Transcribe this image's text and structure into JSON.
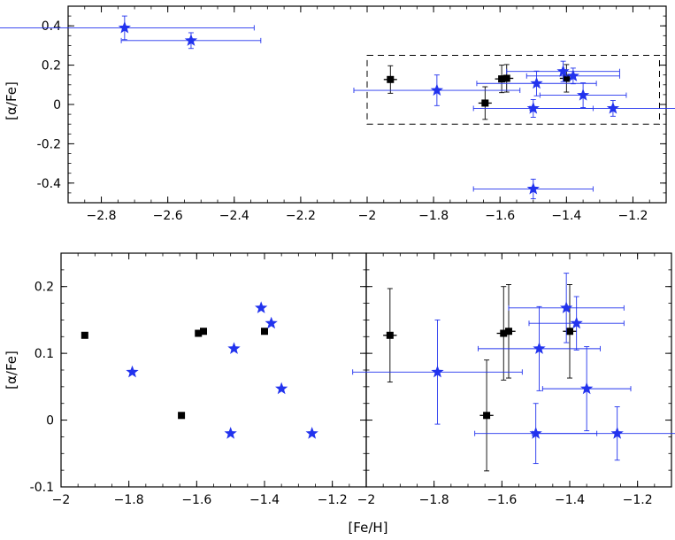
{
  "chart_data": [
    {
      "type": "scatter",
      "panel": "top",
      "xlabel": "",
      "ylabel": "[α/Fe]",
      "xlim": [
        -2.9,
        -1.1
      ],
      "ylim": [
        -0.5,
        0.5
      ],
      "xticks": [
        -2.8,
        -2.6,
        -2.4,
        -2.2,
        -2.0,
        -1.8,
        -1.6,
        -1.4,
        -1.2
      ],
      "xtick_labels": [
        "−2.8",
        "−2.6",
        "−2.4",
        "−2.2",
        "−2",
        "−1.8",
        "−1.6",
        "−1.4",
        "−1.2"
      ],
      "yticks": [
        -0.4,
        -0.2,
        0.0,
        0.2,
        0.4
      ],
      "ytick_labels": [
        "-0.4",
        "-0.2",
        "0",
        "0.2",
        "0.4"
      ],
      "highlight_box": {
        "x": [
          -2.0,
          -1.12
        ],
        "y": [
          -0.1,
          0.25
        ]
      },
      "series": [
        {
          "name": "squares",
          "marker": "square",
          "color": "#000000",
          "points": [
            {
              "x": -1.93,
              "y": 0.127,
              "xerr": 0.02,
              "yerr": 0.07
            },
            {
              "x": -1.645,
              "y": 0.007,
              "xerr": 0.02,
              "yerr": 0.083
            },
            {
              "x": -1.595,
              "y": 0.13,
              "xerr": 0.02,
              "yerr": 0.07
            },
            {
              "x": -1.58,
              "y": 0.133,
              "xerr": 0.02,
              "yerr": 0.07
            },
            {
              "x": -1.4,
              "y": 0.133,
              "xerr": 0.02,
              "yerr": 0.07
            }
          ]
        },
        {
          "name": "stars",
          "marker": "star",
          "color": "#2233ee",
          "points": [
            {
              "x": -2.73,
              "y": 0.39,
              "xerr": 0.39,
              "yerr": 0.06
            },
            {
              "x": -2.53,
              "y": 0.325,
              "xerr": 0.21,
              "yerr": 0.04
            },
            {
              "x": -1.79,
              "y": 0.072,
              "xerr": 0.25,
              "yerr": 0.078
            },
            {
              "x": -1.49,
              "y": 0.107,
              "xerr": 0.18,
              "yerr": 0.063
            },
            {
              "x": -1.41,
              "y": 0.168,
              "xerr": 0.17,
              "yerr": 0.052
            },
            {
              "x": -1.38,
              "y": 0.145,
              "xerr": 0.14,
              "yerr": 0.04
            },
            {
              "x": -1.35,
              "y": 0.047,
              "xerr": 0.13,
              "yerr": 0.063
            },
            {
              "x": -1.5,
              "y": -0.02,
              "xerr": 0.18,
              "yerr": 0.045
            },
            {
              "x": -1.26,
              "y": -0.02,
              "xerr": 0.25,
              "yerr": 0.04
            },
            {
              "x": -1.5,
              "y": -0.43,
              "xerr": 0.18,
              "yerr": 0.05
            }
          ]
        }
      ]
    },
    {
      "type": "scatter",
      "panel": "bottom-left",
      "xlabel": "",
      "ylabel": "[α/Fe]",
      "xlim": [
        -2.0,
        -1.1
      ],
      "ylim": [
        -0.1,
        0.25
      ],
      "xticks": [
        -2.0,
        -1.8,
        -1.6,
        -1.4,
        -1.2
      ],
      "xtick_labels": [
        "−2",
        "−1.8",
        "−1.6",
        "−1.4",
        "−1.2"
      ],
      "yticks": [
        -0.1,
        0.0,
        0.1,
        0.2
      ],
      "ytick_labels": [
        "-0.1",
        "0",
        "0.1",
        "0.2"
      ],
      "series": [
        {
          "name": "squares",
          "marker": "square",
          "color": "#000000",
          "points": [
            {
              "x": -1.93,
              "y": 0.127
            },
            {
              "x": -1.645,
              "y": 0.007
            },
            {
              "x": -1.595,
              "y": 0.13
            },
            {
              "x": -1.58,
              "y": 0.133
            },
            {
              "x": -1.4,
              "y": 0.133
            }
          ]
        },
        {
          "name": "stars",
          "marker": "star",
          "color": "#2233ee",
          "points": [
            {
              "x": -1.79,
              "y": 0.072
            },
            {
              "x": -1.49,
              "y": 0.107
            },
            {
              "x": -1.41,
              "y": 0.168
            },
            {
              "x": -1.38,
              "y": 0.145
            },
            {
              "x": -1.35,
              "y": 0.047
            },
            {
              "x": -1.5,
              "y": -0.02
            },
            {
              "x": -1.26,
              "y": -0.02
            }
          ]
        }
      ]
    },
    {
      "type": "scatter",
      "panel": "bottom-right",
      "xlabel": "",
      "ylabel": "",
      "xlim": [
        -2.0,
        -1.1
      ],
      "ylim": [
        -0.1,
        0.25
      ],
      "xticks": [
        -2.0,
        -1.8,
        -1.6,
        -1.4,
        -1.2
      ],
      "xtick_labels": [
        "−2",
        "−1.8",
        "−1.6",
        "−1.4",
        "−1.2"
      ],
      "yticks": [
        -0.1,
        0.0,
        0.1,
        0.2
      ],
      "ytick_labels": [],
      "series": [
        {
          "name": "squares",
          "marker": "square",
          "color": "#000000",
          "points": [
            {
              "x": -1.93,
              "y": 0.127,
              "xerr": 0.02,
              "yerr": 0.07
            },
            {
              "x": -1.645,
              "y": 0.007,
              "xerr": 0.02,
              "yerr": 0.083
            },
            {
              "x": -1.595,
              "y": 0.13,
              "xerr": 0.02,
              "yerr": 0.07
            },
            {
              "x": -1.58,
              "y": 0.133,
              "xerr": 0.02,
              "yerr": 0.07
            },
            {
              "x": -1.4,
              "y": 0.133,
              "xerr": 0.02,
              "yerr": 0.07
            }
          ]
        },
        {
          "name": "stars",
          "marker": "star",
          "color": "#2233ee",
          "points": [
            {
              "x": -1.79,
              "y": 0.072,
              "xerr": 0.25,
              "yerr": 0.078
            },
            {
              "x": -1.49,
              "y": 0.107,
              "xerr": 0.18,
              "yerr": 0.063
            },
            {
              "x": -1.41,
              "y": 0.168,
              "xerr": 0.17,
              "yerr": 0.052
            },
            {
              "x": -1.38,
              "y": 0.145,
              "xerr": 0.14,
              "yerr": 0.04
            },
            {
              "x": -1.35,
              "y": 0.047,
              "xerr": 0.13,
              "yerr": 0.063
            },
            {
              "x": -1.5,
              "y": -0.02,
              "xerr": 0.18,
              "yerr": 0.045
            },
            {
              "x": -1.26,
              "y": -0.02,
              "xerr": 0.25,
              "yerr": 0.04
            }
          ]
        }
      ]
    }
  ],
  "shared": {
    "bottom_xlabel": "[Fe/H]"
  }
}
